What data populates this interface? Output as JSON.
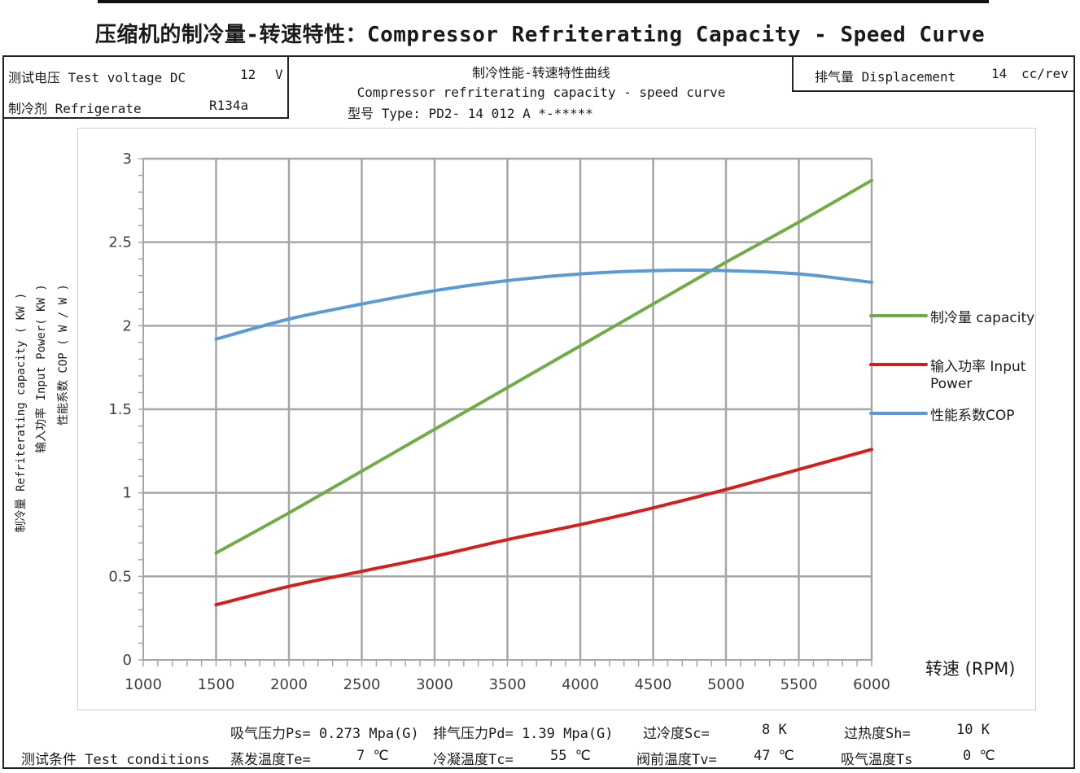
{
  "title": "压缩机的制冷量-转速特性：Compressor Refriterating Capacity - Speed Curve",
  "info_left": {
    "voltage_label": "测试电压 Test voltage DC",
    "voltage_value": "12",
    "voltage_unit": "V",
    "refrigerant_label": "制冷剂  Refrigerate",
    "refrigerant_value": "R134a"
  },
  "info_right": {
    "displacement_label": "排气量 Displacement",
    "displacement_value": "14",
    "displacement_unit": "cc/rev"
  },
  "subtitle": {
    "line1": "制冷性能-转速特性曲线",
    "line2": "Compressor refriterating capacity - speed curve",
    "line3": "型号 Type: PD2-  14 012  A *-*****"
  },
  "colors": {
    "capacity": "#70ad47",
    "input_power": "#d41f1f",
    "cop": "#5b9bd5",
    "grid": "#a6a6a6"
  },
  "chart_data": {
    "type": "line",
    "xlabel": "转速 (RPM)",
    "ylabel_lines": [
      "制冷量 Refriterating capacity  ( KW )",
      "输入功率 Input Power( KW )",
      "性能系数 COP ( W / W )"
    ],
    "xlim": [
      1000,
      6000
    ],
    "ylim": [
      0,
      3
    ],
    "x_ticks": [
      1000,
      1500,
      2000,
      2500,
      3000,
      3500,
      4000,
      4500,
      5000,
      5500,
      6000
    ],
    "y_ticks": [
      0,
      0.5,
      1,
      1.5,
      2,
      2.5,
      3
    ],
    "y_tick_labels": [
      "0",
      "0.5",
      "1",
      "1.5",
      "2",
      "2.5",
      "3"
    ],
    "grid": true,
    "legend_position": "right",
    "x": [
      1500,
      2000,
      2500,
      3000,
      3500,
      4000,
      4500,
      5000,
      5500,
      6000
    ],
    "series": [
      {
        "name": "制冷量 capacity",
        "key": "capacity",
        "values": [
          0.64,
          0.88,
          1.13,
          1.38,
          1.63,
          1.88,
          2.13,
          2.38,
          2.62,
          2.87
        ]
      },
      {
        "name": "输入功率 Input Power",
        "key": "input_power",
        "values": [
          0.33,
          0.44,
          0.53,
          0.62,
          0.72,
          0.81,
          0.91,
          1.02,
          1.14,
          1.26
        ]
      },
      {
        "name": "性能系数COP",
        "key": "cop",
        "values": [
          1.92,
          2.04,
          2.13,
          2.21,
          2.27,
          2.31,
          2.33,
          2.33,
          2.31,
          2.26
        ]
      }
    ]
  },
  "legend": {
    "capacity_label": "制冷量 capacity",
    "input_label_line1": "输入功率 Input",
    "input_label_line2": "Power",
    "cop_label": "性能系数COP"
  },
  "conditions": {
    "label": "测试条件 Test conditions",
    "ps": "吸气压力Ps= 0.273  Mpa(G)",
    "pd": "排气压力Pd=  1.39  Mpa(G)",
    "sc_label": "过冷度Sc=",
    "sc_value": "8 K",
    "sh_label": "过热度Sh=",
    "sh_value": "10 K",
    "te_label": "蒸发温度Te=",
    "te_value": "7 ℃",
    "tc_label": "冷凝温度Tc=",
    "tc_value": "55 ℃",
    "tv_label": "阀前温度Tv=",
    "tv_value": "47 ℃",
    "ts_label": "吸气温度Ts",
    "ts_value": "0 ℃"
  }
}
